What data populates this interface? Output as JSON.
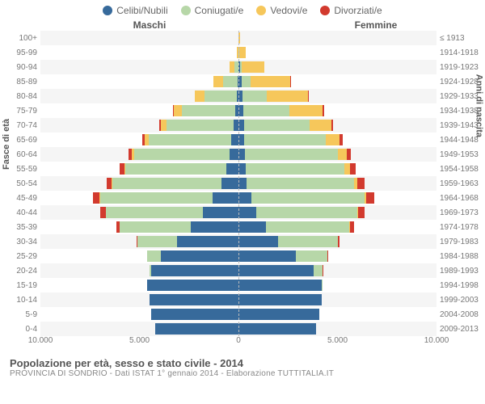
{
  "legend": [
    {
      "label": "Celibi/Nubili",
      "color": "#376a9b"
    },
    {
      "label": "Coniugati/e",
      "color": "#b7d7a8"
    },
    {
      "label": "Vedovi/e",
      "color": "#f6c75b"
    },
    {
      "label": "Divorziati/e",
      "color": "#d23a2e"
    }
  ],
  "headers": {
    "left": "Maschi",
    "right": "Femmine"
  },
  "y_title_left": "Fasce di età",
  "y_title_right": "Anni di nascita",
  "x_axis": {
    "max": 10000,
    "ticks": [
      {
        "pos": -10000,
        "label": "10.000"
      },
      {
        "pos": -5000,
        "label": "5.000"
      },
      {
        "pos": 0,
        "label": "0"
      },
      {
        "pos": 5000,
        "label": "5.000"
      },
      {
        "pos": 10000,
        "label": "10.000"
      }
    ]
  },
  "title": "Popolazione per età, sesso e stato civile - 2014",
  "subtitle": "PROVINCIA DI SONDRIO - Dati ISTAT 1° gennaio 2014 - Elaborazione TUTTITALIA.IT",
  "colors": {
    "celibi": "#376a9b",
    "coniugati": "#b7d7a8",
    "vedovi": "#f6c75b",
    "divorziati": "#d23a2e",
    "grid_odd": "#f5f5f5",
    "grid_even": "#ffffff"
  },
  "rows": [
    {
      "age": "100+",
      "birth": "≤ 1913",
      "m": {
        "c": 0,
        "co": 0,
        "v": 20,
        "d": 0
      },
      "f": {
        "c": 0,
        "co": 0,
        "v": 90,
        "d": 0
      }
    },
    {
      "age": "95-99",
      "birth": "1914-1918",
      "m": {
        "c": 5,
        "co": 15,
        "v": 60,
        "d": 0
      },
      "f": {
        "c": 20,
        "co": 10,
        "v": 350,
        "d": 0
      }
    },
    {
      "age": "90-94",
      "birth": "1919-1923",
      "m": {
        "c": 20,
        "co": 170,
        "v": 280,
        "d": 0
      },
      "f": {
        "c": 70,
        "co": 90,
        "v": 1150,
        "d": 0
      }
    },
    {
      "age": "85-89",
      "birth": "1924-1928",
      "m": {
        "c": 60,
        "co": 700,
        "v": 500,
        "d": 0
      },
      "f": {
        "c": 150,
        "co": 450,
        "v": 2000,
        "d": 10
      }
    },
    {
      "age": "80-84",
      "birth": "1929-1933",
      "m": {
        "c": 100,
        "co": 1600,
        "v": 500,
        "d": 20
      },
      "f": {
        "c": 220,
        "co": 1200,
        "v": 2100,
        "d": 30
      }
    },
    {
      "age": "75-79",
      "birth": "1934-1938",
      "m": {
        "c": 170,
        "co": 2700,
        "v": 400,
        "d": 40
      },
      "f": {
        "c": 260,
        "co": 2300,
        "v": 1700,
        "d": 60
      }
    },
    {
      "age": "70-74",
      "birth": "1939-1943",
      "m": {
        "c": 250,
        "co": 3400,
        "v": 280,
        "d": 80
      },
      "f": {
        "c": 280,
        "co": 3300,
        "v": 1100,
        "d": 100
      }
    },
    {
      "age": "65-69",
      "birth": "1944-1948",
      "m": {
        "c": 350,
        "co": 4200,
        "v": 180,
        "d": 120
      },
      "f": {
        "c": 300,
        "co": 4100,
        "v": 700,
        "d": 150
      }
    },
    {
      "age": "60-64",
      "birth": "1949-1953",
      "m": {
        "c": 450,
        "co": 4800,
        "v": 120,
        "d": 180
      },
      "f": {
        "c": 320,
        "co": 4700,
        "v": 450,
        "d": 200
      }
    },
    {
      "age": "55-59",
      "birth": "1954-1958",
      "m": {
        "c": 600,
        "co": 5100,
        "v": 70,
        "d": 220
      },
      "f": {
        "c": 350,
        "co": 5000,
        "v": 280,
        "d": 270
      }
    },
    {
      "age": "50-54",
      "birth": "1959-1963",
      "m": {
        "c": 850,
        "co": 5500,
        "v": 40,
        "d": 280
      },
      "f": {
        "c": 420,
        "co": 5400,
        "v": 180,
        "d": 350
      }
    },
    {
      "age": "45-49",
      "birth": "1964-1968",
      "m": {
        "c": 1300,
        "co": 5700,
        "v": 25,
        "d": 320
      },
      "f": {
        "c": 650,
        "co": 5700,
        "v": 110,
        "d": 400
      }
    },
    {
      "age": "40-44",
      "birth": "1969-1973",
      "m": {
        "c": 1800,
        "co": 4900,
        "v": 12,
        "d": 250
      },
      "f": {
        "c": 900,
        "co": 5100,
        "v": 60,
        "d": 320
      }
    },
    {
      "age": "35-39",
      "birth": "1974-1978",
      "m": {
        "c": 2400,
        "co": 3600,
        "v": 5,
        "d": 150
      },
      "f": {
        "c": 1400,
        "co": 4200,
        "v": 25,
        "d": 200
      }
    },
    {
      "age": "30-34",
      "birth": "1979-1983",
      "m": {
        "c": 3100,
        "co": 2000,
        "v": 0,
        "d": 60
      },
      "f": {
        "c": 2000,
        "co": 3000,
        "v": 10,
        "d": 90
      }
    },
    {
      "age": "25-29",
      "birth": "1984-1988",
      "m": {
        "c": 3900,
        "co": 700,
        "v": 0,
        "d": 15
      },
      "f": {
        "c": 2900,
        "co": 1600,
        "v": 3,
        "d": 25
      }
    },
    {
      "age": "20-24",
      "birth": "1989-1993",
      "m": {
        "c": 4400,
        "co": 100,
        "v": 0,
        "d": 0
      },
      "f": {
        "c": 3800,
        "co": 450,
        "v": 0,
        "d": 5
      }
    },
    {
      "age": "15-19",
      "birth": "1994-1998",
      "m": {
        "c": 4600,
        "co": 5,
        "v": 0,
        "d": 0
      },
      "f": {
        "c": 4200,
        "co": 30,
        "v": 0,
        "d": 0
      }
    },
    {
      "age": "10-14",
      "birth": "1999-2003",
      "m": {
        "c": 4500,
        "co": 0,
        "v": 0,
        "d": 0
      },
      "f": {
        "c": 4200,
        "co": 0,
        "v": 0,
        "d": 0
      }
    },
    {
      "age": "5-9",
      "birth": "2004-2008",
      "m": {
        "c": 4400,
        "co": 0,
        "v": 0,
        "d": 0
      },
      "f": {
        "c": 4100,
        "co": 0,
        "v": 0,
        "d": 0
      }
    },
    {
      "age": "0-4",
      "birth": "2009-2013",
      "m": {
        "c": 4200,
        "co": 0,
        "v": 0,
        "d": 0
      },
      "f": {
        "c": 3900,
        "co": 0,
        "v": 0,
        "d": 0
      }
    }
  ]
}
